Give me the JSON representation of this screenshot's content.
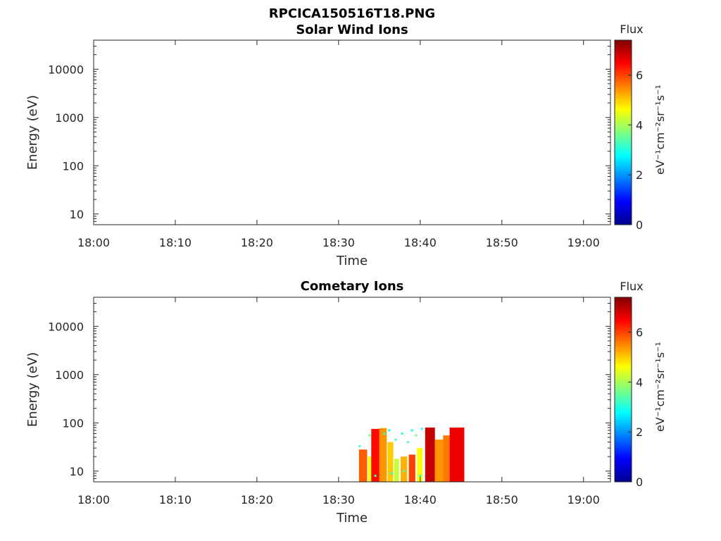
{
  "figure_title": "RPCICA150516T18.PNG",
  "colors": {
    "axis": "#262626",
    "colormap": [
      "#00008f",
      "#0000ff",
      "#0080ff",
      "#00ffff",
      "#80ff80",
      "#ffff00",
      "#ff8000",
      "#ff0000",
      "#800000"
    ]
  },
  "chart_data": [
    {
      "type": "heatmap",
      "title": "Solar Wind Ions",
      "xlabel": "Time",
      "ylabel": "Energy (eV)",
      "x_ticks": [
        "18:00",
        "18:10",
        "18:20",
        "18:30",
        "18:40",
        "18:50",
        "19:00"
      ],
      "x_tick_minutes": [
        0,
        10,
        20,
        30,
        40,
        50,
        60
      ],
      "xlim_minutes": [
        0,
        63.3
      ],
      "y_scale": "log",
      "y_ticks": [
        "10",
        "100",
        "1000",
        "10000"
      ],
      "y_tick_values": [
        10,
        100,
        1000,
        10000
      ],
      "ylim": [
        6,
        40000
      ],
      "colorbar": {
        "title": "Flux",
        "label": "eV⁻¹cm⁻²sr⁻¹s⁻¹",
        "ticks": [
          "0",
          "2",
          "4",
          "6"
        ],
        "tick_values": [
          0,
          2,
          4,
          6
        ],
        "range": [
          0,
          7.4
        ]
      },
      "blocks": []
    },
    {
      "type": "heatmap",
      "title": "Cometary Ions",
      "xlabel": "Time",
      "ylabel": "Energy (eV)",
      "x_ticks": [
        "18:00",
        "18:10",
        "18:20",
        "18:30",
        "18:40",
        "18:50",
        "19:00"
      ],
      "x_tick_minutes": [
        0,
        10,
        20,
        30,
        40,
        50,
        60
      ],
      "xlim_minutes": [
        0,
        63.3
      ],
      "y_scale": "log",
      "y_ticks": [
        "10",
        "100",
        "1000",
        "10000"
      ],
      "y_tick_values": [
        10,
        100,
        1000,
        10000
      ],
      "ylim": [
        6,
        40000
      ],
      "colorbar": {
        "title": "Flux",
        "label": "eV⁻¹cm⁻²sr⁻¹s⁻¹",
        "ticks": [
          "0",
          "2",
          "4",
          "6"
        ],
        "tick_values": [
          0,
          2,
          4,
          6
        ],
        "range": [
          0,
          7.4
        ]
      },
      "blocks": [
        {
          "t0": 32.5,
          "t1": 33.5,
          "e0": 6,
          "e1": 28,
          "flux": 5.8
        },
        {
          "t0": 33.6,
          "t1": 34.0,
          "e0": 6,
          "e1": 20,
          "flux": 4.5
        },
        {
          "t0": 34.0,
          "t1": 35.0,
          "e0": 6,
          "e1": 75,
          "flux": 6.4
        },
        {
          "t0": 35.0,
          "t1": 35.9,
          "e0": 6,
          "e1": 78,
          "flux": 5.4
        },
        {
          "t0": 36.0,
          "t1": 36.7,
          "e0": 6,
          "e1": 40,
          "flux": 5.0
        },
        {
          "t0": 36.8,
          "t1": 37.4,
          "e0": 6,
          "e1": 18,
          "flux": 4.2
        },
        {
          "t0": 37.6,
          "t1": 38.4,
          "e0": 6,
          "e1": 20,
          "flux": 5.2
        },
        {
          "t0": 38.6,
          "t1": 39.4,
          "e0": 6,
          "e1": 22,
          "flux": 6.0
        },
        {
          "t0": 39.6,
          "t1": 40.3,
          "e0": 6,
          "e1": 30,
          "flux": 4.6
        },
        {
          "t0": 40.6,
          "t1": 41.8,
          "e0": 6,
          "e1": 80,
          "flux": 6.9
        },
        {
          "t0": 41.8,
          "t1": 42.8,
          "e0": 6,
          "e1": 45,
          "flux": 5.4
        },
        {
          "t0": 42.8,
          "t1": 43.6,
          "e0": 6,
          "e1": 55,
          "flux": 5.6
        },
        {
          "t0": 43.6,
          "t1": 45.4,
          "e0": 6,
          "e1": 80,
          "flux": 6.6
        }
      ],
      "sparse_points": [
        {
          "t": 32.6,
          "e": 33,
          "flux": 3.2
        },
        {
          "t": 33.8,
          "e": 55,
          "flux": 3.5
        },
        {
          "t": 35.6,
          "e": 60,
          "flux": 3.0
        },
        {
          "t": 36.2,
          "e": 70,
          "flux": 2.8
        },
        {
          "t": 37.0,
          "e": 45,
          "flux": 3.3
        },
        {
          "t": 37.8,
          "e": 60,
          "flux": 3.1
        },
        {
          "t": 38.5,
          "e": 40,
          "flux": 3.4
        },
        {
          "t": 39.0,
          "e": 70,
          "flux": 2.9
        },
        {
          "t": 39.5,
          "e": 55,
          "flux": 3.6
        },
        {
          "t": 40.2,
          "e": 75,
          "flux": 3.0
        },
        {
          "t": 34.5,
          "e": 8,
          "flux": 3.2
        },
        {
          "t": 36.5,
          "e": 9,
          "flux": 3.0
        },
        {
          "t": 38.0,
          "e": 10,
          "flux": 3.4
        },
        {
          "t": 40.0,
          "e": 8,
          "flux": 3.1
        }
      ]
    }
  ]
}
